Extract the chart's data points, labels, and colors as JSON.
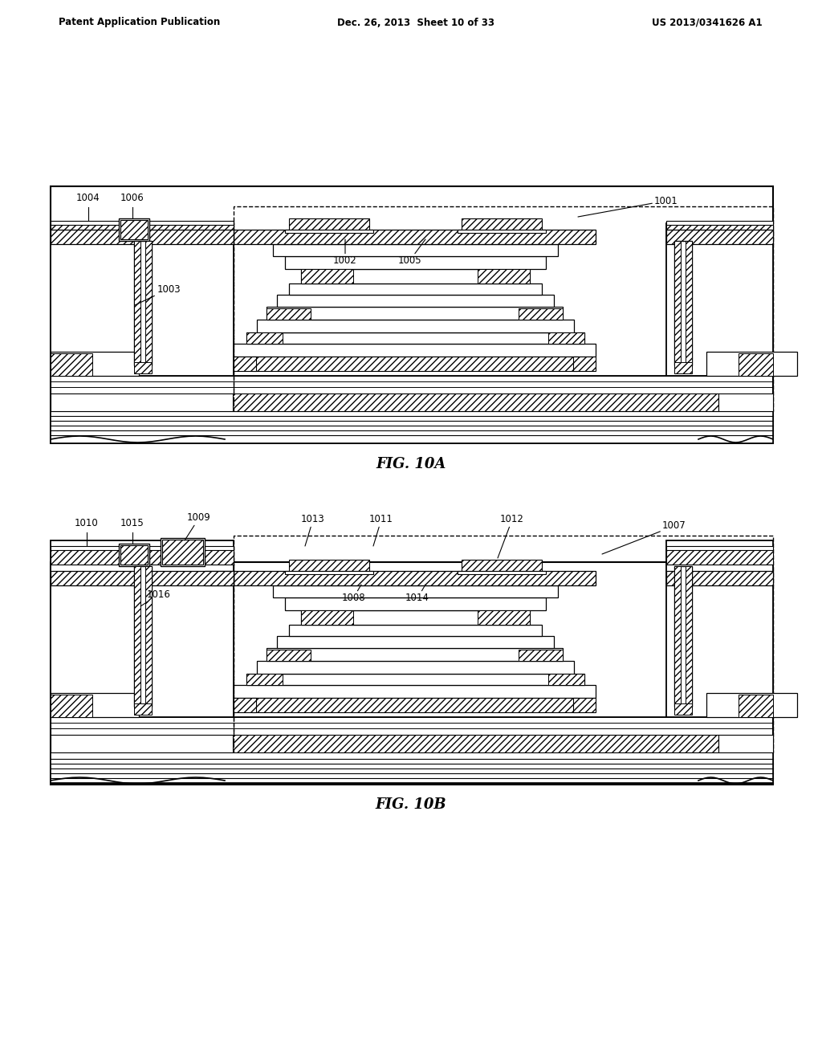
{
  "background_color": "#ffffff",
  "header_left": "Patent Application Publication",
  "header_middle": "Dec. 26, 2013  Sheet 10 of 33",
  "header_right": "US 2013/0341626 A1",
  "fig_label_A": "FIG. 10A",
  "fig_label_B": "FIG. 10B"
}
